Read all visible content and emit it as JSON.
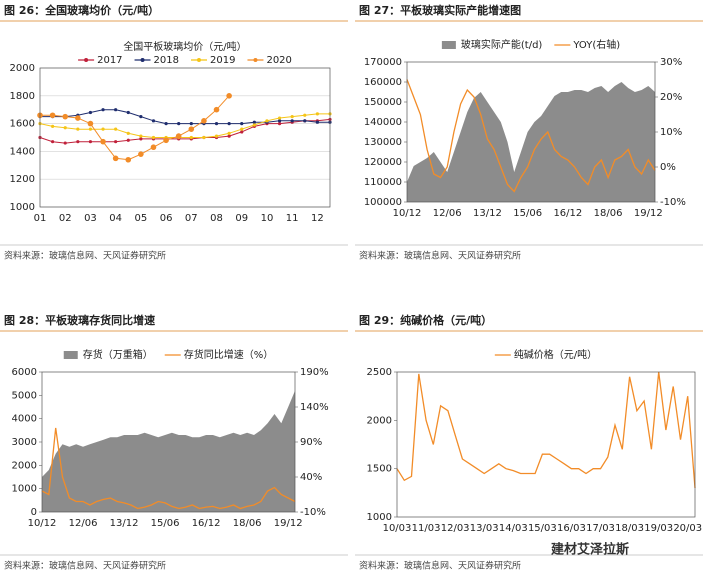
{
  "chart_data": [
    {
      "type": "line",
      "caption": "图 26：全国玻璃均价（元/吨）",
      "title": "全国平板玻璃均价（元/吨）",
      "source": "资料来源：玻璃信息网、天风证券研究所",
      "grid": true,
      "markers": true,
      "categories": [
        "01",
        null,
        "02",
        null,
        "03",
        null,
        "04",
        null,
        "05",
        null,
        "06",
        null,
        "07",
        null,
        "08",
        null,
        "09",
        null,
        "10",
        null,
        "11",
        null,
        "12",
        null
      ],
      "ylim": [
        1000,
        2000
      ],
      "yticks": [
        1000,
        1200,
        1400,
        1600,
        1800,
        2000
      ],
      "series": [
        {
          "name": "2017",
          "color": "#c0203a",
          "type": "line",
          "values": [
            1500,
            1470,
            1460,
            1470,
            1470,
            1470,
            1470,
            1480,
            1490,
            1490,
            1490,
            1490,
            1490,
            1500,
            1500,
            1510,
            1540,
            1580,
            1600,
            1600,
            1610,
            1620,
            1620,
            1630
          ]
        },
        {
          "name": "2018",
          "color": "#1f2d6e",
          "type": "line",
          "values": [
            1650,
            1650,
            1650,
            1660,
            1680,
            1700,
            1700,
            1680,
            1650,
            1620,
            1600,
            1600,
            1600,
            1600,
            1600,
            1600,
            1600,
            1610,
            1610,
            1620,
            1620,
            1620,
            1610,
            1610
          ]
        },
        {
          "name": "2019",
          "color": "#f5c518",
          "type": "line",
          "values": [
            1600,
            1580,
            1570,
            1560,
            1560,
            1560,
            1560,
            1530,
            1510,
            1500,
            1500,
            1500,
            1500,
            1500,
            1510,
            1530,
            1560,
            1590,
            1620,
            1640,
            1650,
            1660,
            1670,
            1670
          ]
        },
        {
          "name": "2020",
          "color": "#f28c28",
          "type": "line",
          "values": [
            1660,
            1660,
            1650,
            1640,
            1600,
            1470,
            1350,
            1340,
            1380,
            1430,
            1480,
            1510,
            1560,
            1620,
            1700,
            1800,
            null,
            null,
            null,
            null,
            null,
            null,
            null,
            null
          ]
        }
      ]
    },
    {
      "type": "combo",
      "caption": "图 27：平板玻璃实际产能增速图",
      "source": "资料来源：玻璃信息网、天风证券研究所",
      "categories": [
        "10/12",
        null,
        null,
        null,
        null,
        null,
        "12/06",
        null,
        null,
        null,
        null,
        null,
        "13/12",
        null,
        null,
        null,
        null,
        null,
        "15/06",
        null,
        null,
        null,
        null,
        null,
        "16/12",
        null,
        null,
        null,
        null,
        null,
        "18/06",
        null,
        null,
        null,
        null,
        null,
        "19/12",
        null
      ],
      "ylim": [
        100000,
        170000
      ],
      "yticks": [
        100000,
        110000,
        120000,
        130000,
        140000,
        150000,
        160000,
        170000
      ],
      "y2lim": [
        -10,
        30
      ],
      "y2ticks": [
        {
          "value": -10,
          "label": "-10%"
        },
        {
          "value": 0,
          "label": "0%"
        },
        {
          "value": 10,
          "label": "10%"
        },
        {
          "value": 20,
          "label": "20%"
        },
        {
          "value": 30,
          "label": "30%"
        }
      ],
      "series": [
        {
          "name": "玻璃实际产能(t/d)",
          "color": "#8c8c8c",
          "type": "area",
          "values": [
            110000,
            118000,
            120000,
            122000,
            125000,
            120000,
            115000,
            125000,
            135000,
            145000,
            152000,
            155000,
            150000,
            145000,
            140000,
            130000,
            115000,
            125000,
            135000,
            140000,
            143000,
            148000,
            153000,
            155000,
            155000,
            156000,
            156000,
            155000,
            157000,
            158000,
            155000,
            158000,
            160000,
            157000,
            155000,
            156000,
            158000,
            155000
          ]
        },
        {
          "name": "YOY(右轴)",
          "color": "#f28c28",
          "type": "line",
          "axis": "y2",
          "values": [
            25,
            20,
            15,
            5,
            -2,
            -3,
            0,
            10,
            18,
            22,
            20,
            15,
            8,
            5,
            0,
            -5,
            -7,
            -3,
            0,
            5,
            8,
            10,
            5,
            3,
            2,
            0,
            -3,
            -5,
            0,
            2,
            -3,
            2,
            3,
            5,
            0,
            -2,
            2,
            -1
          ]
        }
      ]
    },
    {
      "type": "combo",
      "caption": "图 28：平板玻璃存货同比增速",
      "source": "资料来源：玻璃信息网、天风证券研究所",
      "categories": [
        "10/12",
        null,
        null,
        null,
        null,
        null,
        "12/06",
        null,
        null,
        null,
        null,
        null,
        "13/12",
        null,
        null,
        null,
        null,
        null,
        "15/06",
        null,
        null,
        null,
        null,
        null,
        "16/12",
        null,
        null,
        null,
        null,
        null,
        "18/06",
        null,
        null,
        null,
        null,
        null,
        "19/12",
        null
      ],
      "ylim": [
        0,
        6000
      ],
      "yticks": [
        0,
        1000,
        2000,
        3000,
        4000,
        5000,
        6000
      ],
      "y2lim": [
        -10,
        190
      ],
      "y2ticks": [
        {
          "value": -10,
          "label": "-10%"
        },
        {
          "value": 40,
          "label": "40%"
        },
        {
          "value": 90,
          "label": "90%"
        },
        {
          "value": 140,
          "label": "140%"
        },
        {
          "value": 190,
          "label": "190%"
        }
      ],
      "series": [
        {
          "name": "存货（万重箱）",
          "color": "#8c8c8c",
          "type": "area",
          "values": [
            1500,
            1800,
            2500,
            2900,
            2800,
            2900,
            2800,
            2900,
            3000,
            3100,
            3200,
            3200,
            3300,
            3300,
            3300,
            3400,
            3300,
            3200,
            3300,
            3400,
            3300,
            3300,
            3200,
            3200,
            3300,
            3300,
            3200,
            3300,
            3400,
            3300,
            3400,
            3300,
            3500,
            3800,
            4200,
            3800,
            4500,
            5200
          ]
        },
        {
          "name": "存货同比增速（%）",
          "color": "#f28c28",
          "type": "line",
          "axis": "y2",
          "values": [
            20,
            15,
            110,
            40,
            10,
            5,
            5,
            0,
            5,
            8,
            10,
            5,
            3,
            0,
            -5,
            -3,
            0,
            5,
            3,
            -2,
            -5,
            -3,
            0,
            -5,
            -3,
            -2,
            -5,
            -3,
            0,
            -5,
            -2,
            0,
            5,
            20,
            25,
            15,
            10,
            5
          ]
        }
      ]
    },
    {
      "type": "line",
      "caption": "图 29：纯碱价格（元/吨）",
      "source": "资料来源：玻璃信息网、天风证券研究所",
      "categories": [
        "10/03",
        null,
        null,
        null,
        "11/03",
        null,
        null,
        null,
        "12/03",
        null,
        null,
        null,
        "13/03",
        null,
        null,
        null,
        "14/03",
        null,
        null,
        null,
        "15/03",
        null,
        null,
        null,
        "16/03",
        null,
        null,
        null,
        "17/03",
        null,
        null,
        null,
        "18/03",
        null,
        null,
        null,
        "19/03",
        null,
        null,
        null,
        "20/03",
        null
      ],
      "ylim": [
        1000,
        2500
      ],
      "yticks": [
        1000,
        1500,
        2000,
        2500
      ],
      "series": [
        {
          "name": "纯碱价格（元/吨）",
          "color": "#f28c28",
          "type": "line",
          "values": [
            1500,
            1380,
            1420,
            2480,
            2000,
            1750,
            2150,
            2100,
            1850,
            1600,
            1550,
            1500,
            1450,
            1500,
            1550,
            1500,
            1480,
            1450,
            1450,
            1450,
            1650,
            1650,
            1600,
            1550,
            1500,
            1500,
            1450,
            1500,
            1500,
            1620,
            1950,
            1700,
            2450,
            2100,
            2200,
            1700,
            2500,
            1900,
            2350,
            1800,
            2250,
            1300
          ]
        }
      ]
    }
  ],
  "watermark": "建材艾泽拉斯"
}
